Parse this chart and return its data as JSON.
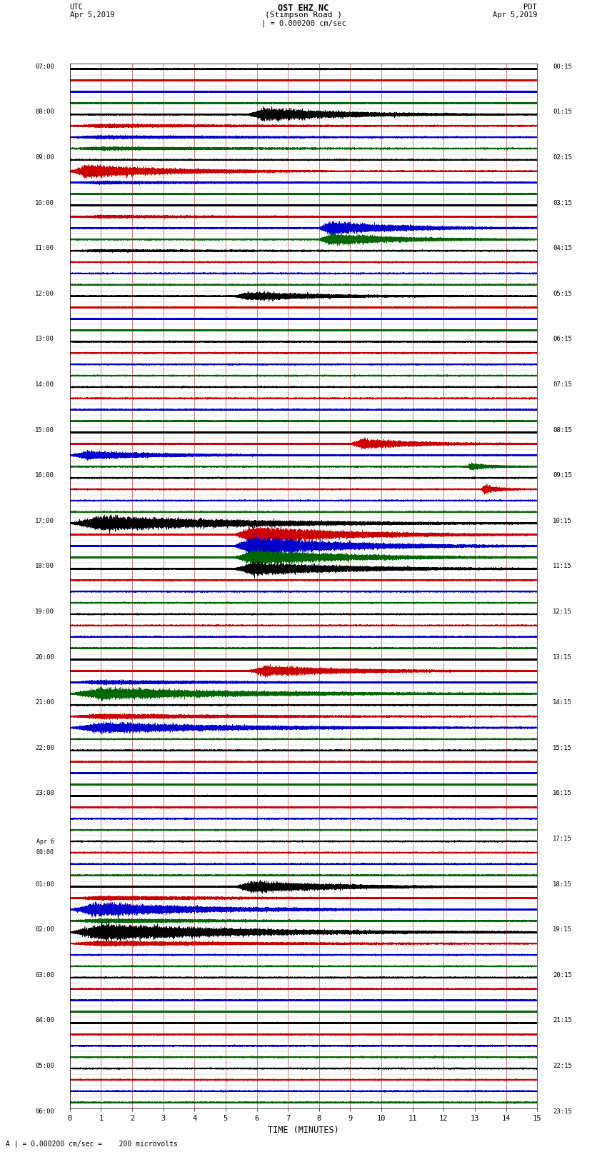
{
  "title_line1": "OST EHZ NC",
  "title_line2": "(Stimpson Road )",
  "title_scale": "| = 0.000200 cm/sec",
  "left_label_top": "UTC",
  "left_date": "Apr 5,2019",
  "right_label_top": "PDT",
  "right_date": "Apr 5,2019",
  "xlabel": "TIME (MINUTES)",
  "bottom_note": "A | = 0.000200 cm/sec =    200 microvolts",
  "bg_color": "#ffffff",
  "vgrid_color": "#bb3333",
  "minutes": 15,
  "sample_rate": 100,
  "trace_colors": [
    "#000000",
    "#cc0000",
    "#0000cc",
    "#006600"
  ],
  "n_hours": 23,
  "utc_labels": [
    "07:00",
    "08:00",
    "09:00",
    "10:00",
    "11:00",
    "12:00",
    "13:00",
    "14:00",
    "15:00",
    "16:00",
    "17:00",
    "18:00",
    "19:00",
    "20:00",
    "21:00",
    "22:00",
    "23:00",
    "Apr 6\n00:00",
    "01:00",
    "02:00",
    "03:00",
    "04:00",
    "05:00",
    "06:00"
  ],
  "pdt_labels": [
    "00:15",
    "01:15",
    "02:15",
    "03:15",
    "04:15",
    "05:15",
    "06:15",
    "07:15",
    "08:15",
    "09:15",
    "10:15",
    "11:15",
    "12:15",
    "13:15",
    "14:15",
    "15:15",
    "16:15",
    "17:15",
    "18:15",
    "19:15",
    "20:15",
    "21:15",
    "22:15",
    "23:15"
  ],
  "events": {
    "4": {
      "amp": 0.45,
      "es": 0.38,
      "ed": 0.55
    },
    "5": {
      "amp": 0.12,
      "es": 0.0,
      "ed": 1.0
    },
    "6": {
      "amp": 0.12,
      "es": 0.0,
      "ed": 1.0
    },
    "7": {
      "amp": 0.12,
      "es": 0.0,
      "ed": 1.0
    },
    "9": {
      "amp": 0.45,
      "es": 0.0,
      "ed": 0.55
    },
    "10": {
      "amp": 0.1,
      "es": 0.0,
      "ed": 1.0
    },
    "13": {
      "amp": 0.1,
      "es": 0.0,
      "ed": 1.0
    },
    "14": {
      "amp": 0.45,
      "es": 0.53,
      "ed": 0.45
    },
    "15": {
      "amp": 0.4,
      "es": 0.53,
      "ed": 0.45
    },
    "16": {
      "amp": 0.08,
      "es": 0.0,
      "ed": 1.0
    },
    "20": {
      "amp": 0.3,
      "es": 0.35,
      "ed": 0.5
    },
    "33": {
      "amp": 0.35,
      "es": 0.6,
      "ed": 0.38
    },
    "34": {
      "amp": 0.28,
      "es": 0.0,
      "ed": 0.55
    },
    "35": {
      "amp": 0.25,
      "es": 0.85,
      "ed": 0.13
    },
    "37": {
      "amp": 0.3,
      "es": 0.88,
      "ed": 0.1
    },
    "40": {
      "amp": 0.5,
      "es": 0.0,
      "ed": 1.0
    },
    "41": {
      "amp": 0.55,
      "es": 0.35,
      "ed": 0.65
    },
    "42": {
      "amp": 0.6,
      "es": 0.35,
      "ed": 0.65
    },
    "43": {
      "amp": 0.5,
      "es": 0.35,
      "ed": 0.65
    },
    "44": {
      "amp": 0.45,
      "es": 0.35,
      "ed": 0.65
    },
    "53": {
      "amp": 0.35,
      "es": 0.38,
      "ed": 0.6
    },
    "54": {
      "amp": 0.15,
      "es": 0.0,
      "ed": 1.0
    },
    "55": {
      "amp": 0.4,
      "es": 0.0,
      "ed": 1.0
    },
    "57": {
      "amp": 0.18,
      "es": 0.0,
      "ed": 1.0
    },
    "58": {
      "amp": 0.35,
      "es": 0.0,
      "ed": 1.0
    },
    "72": {
      "amp": 0.38,
      "es": 0.35,
      "ed": 0.6
    },
    "73": {
      "amp": 0.15,
      "es": 0.0,
      "ed": 1.0
    },
    "74": {
      "amp": 0.45,
      "es": 0.0,
      "ed": 0.8
    },
    "75": {
      "amp": 0.15,
      "es": 0.0,
      "ed": 1.0
    },
    "76": {
      "amp": 0.55,
      "es": 0.0,
      "ed": 1.0
    },
    "77": {
      "amp": 0.18,
      "es": 0.0,
      "ed": 1.0
    }
  }
}
